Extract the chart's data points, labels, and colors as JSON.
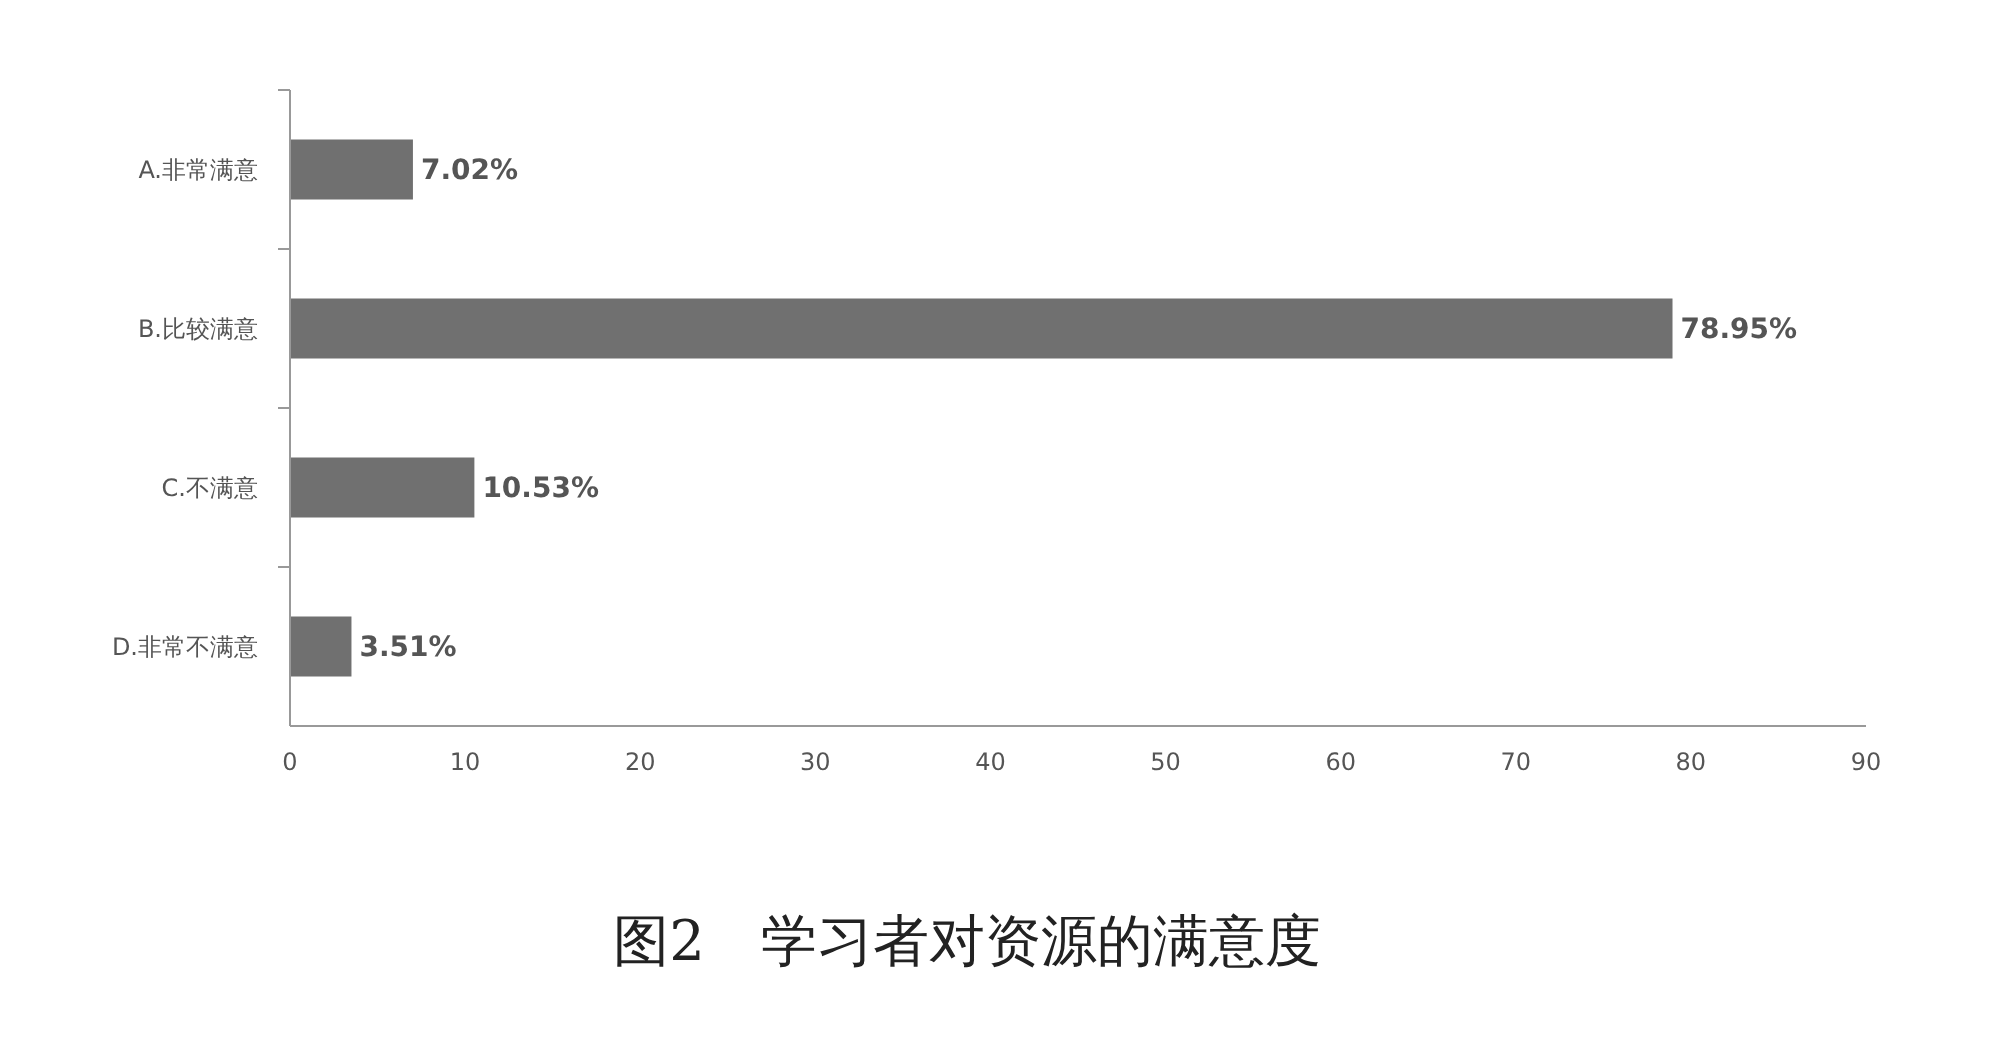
{
  "chart_data": {
    "type": "bar",
    "orientation": "horizontal",
    "title": "图2　学习者对资源的满意度",
    "categories": [
      "A.非常满意",
      "B.比较满意",
      "C.不满意",
      "D.非常不满意"
    ],
    "values": [
      7.02,
      78.95,
      10.53,
      3.51
    ],
    "value_labels": [
      "7.02%",
      "78.95%",
      "10.53%",
      "3.51%"
    ],
    "color": "#707070",
    "xlim": [
      0,
      90
    ],
    "xticks": [
      0,
      10,
      20,
      30,
      40,
      50,
      60,
      70,
      80,
      90
    ],
    "grid": false
  }
}
